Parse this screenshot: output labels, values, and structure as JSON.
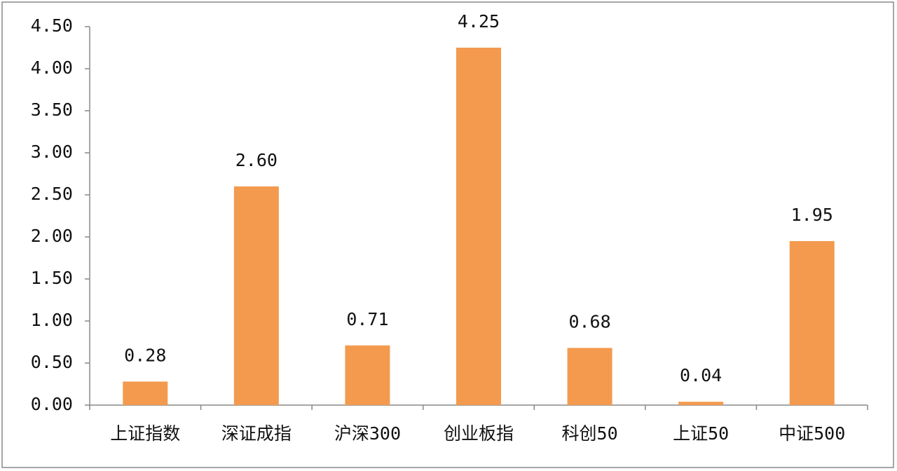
{
  "chart_data": {
    "type": "bar",
    "categories": [
      "上证指数",
      "深证成指",
      "沪深300",
      "创业板指",
      "科创50",
      "上证50",
      "中证500"
    ],
    "values": [
      0.28,
      2.6,
      0.71,
      4.25,
      0.68,
      0.04,
      1.95
    ],
    "value_labels": [
      "0.28",
      "2.60",
      "0.71",
      "4.25",
      "0.68",
      "0.04",
      "1.95"
    ],
    "color": "#f39a4f",
    "ylim": [
      0,
      4.5
    ],
    "yticks": [
      {
        "value": 0,
        "label": "0.00"
      },
      {
        "value": 0.5,
        "label": "0.50"
      },
      {
        "value": 1,
        "label": "1.00"
      },
      {
        "value": 1.5,
        "label": "1.50"
      },
      {
        "value": 2,
        "label": "2.00"
      },
      {
        "value": 2.5,
        "label": "2.50"
      },
      {
        "value": 3,
        "label": "3.00"
      },
      {
        "value": 3.5,
        "label": "3.50"
      },
      {
        "value": 4,
        "label": "4.00"
      },
      {
        "value": 4.5,
        "label": "4.50"
      }
    ],
    "grid": false
  }
}
